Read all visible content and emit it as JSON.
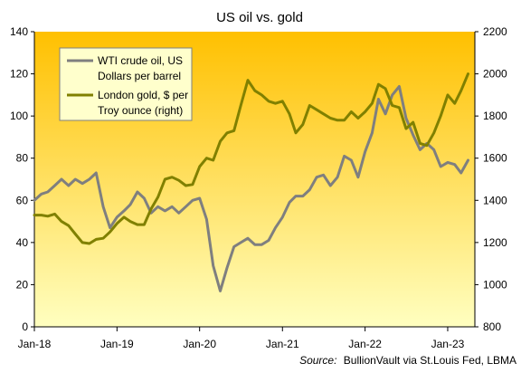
{
  "chart_data": {
    "type": "line",
    "title": "US oil vs. gold",
    "source_label": "Source:",
    "source_text": "BullionVault via St.Louis Fed, LBMA",
    "x_ticks": [
      "Jan-18",
      "Jan-19",
      "Jan-20",
      "Jan-21",
      "Jan-22",
      "Jan-23"
    ],
    "y_left": {
      "min": 0,
      "max": 140,
      "ticks": [
        0,
        20,
        40,
        60,
        80,
        100,
        120,
        140
      ]
    },
    "y_right": {
      "min": 800,
      "max": 2200,
      "ticks": [
        800,
        1000,
        1200,
        1400,
        1600,
        1800,
        2000,
        2200
      ]
    },
    "x_range": [
      "2018-01-01",
      "2023-05-01"
    ],
    "grid": false,
    "background": {
      "top": "#FFC000",
      "bottom": "#FFFFC0"
    },
    "legend": {
      "position": "top-left",
      "entries": [
        {
          "lines": [
            "WTI crude oil, US",
            "Dollars per barrel"
          ],
          "color": "#7F7F7F"
        },
        {
          "lines": [
            "London gold, $ per",
            "Troy ounce (right)"
          ],
          "color": "#808000"
        }
      ]
    },
    "series": [
      {
        "name": "WTI crude oil, US Dollars per barrel",
        "axis": "left",
        "color": "#7F7F7F",
        "points": [
          [
            "2018-01-01",
            60
          ],
          [
            "2018-02-01",
            63
          ],
          [
            "2018-03-01",
            64
          ],
          [
            "2018-04-01",
            67
          ],
          [
            "2018-05-01",
            70
          ],
          [
            "2018-06-01",
            67
          ],
          [
            "2018-07-01",
            70
          ],
          [
            "2018-08-01",
            68
          ],
          [
            "2018-09-01",
            70
          ],
          [
            "2018-10-01",
            73
          ],
          [
            "2018-11-01",
            57
          ],
          [
            "2018-12-01",
            47
          ],
          [
            "2019-01-01",
            52
          ],
          [
            "2019-02-01",
            55
          ],
          [
            "2019-03-01",
            58
          ],
          [
            "2019-04-01",
            64
          ],
          [
            "2019-05-01",
            61
          ],
          [
            "2019-06-01",
            54
          ],
          [
            "2019-07-01",
            57
          ],
          [
            "2019-08-01",
            55
          ],
          [
            "2019-09-01",
            57
          ],
          [
            "2019-10-01",
            54
          ],
          [
            "2019-11-01",
            57
          ],
          [
            "2019-12-01",
            60
          ],
          [
            "2020-01-01",
            61
          ],
          [
            "2020-02-01",
            51
          ],
          [
            "2020-03-01",
            29
          ],
          [
            "2020-04-01",
            17
          ],
          [
            "2020-05-01",
            28
          ],
          [
            "2020-06-01",
            38
          ],
          [
            "2020-07-01",
            40
          ],
          [
            "2020-08-01",
            42
          ],
          [
            "2020-09-01",
            39
          ],
          [
            "2020-10-01",
            39
          ],
          [
            "2020-11-01",
            41
          ],
          [
            "2020-12-01",
            47
          ],
          [
            "2021-01-01",
            52
          ],
          [
            "2021-02-01",
            59
          ],
          [
            "2021-03-01",
            62
          ],
          [
            "2021-04-01",
            62
          ],
          [
            "2021-05-01",
            65
          ],
          [
            "2021-06-01",
            71
          ],
          [
            "2021-07-01",
            72
          ],
          [
            "2021-08-01",
            67
          ],
          [
            "2021-09-01",
            71
          ],
          [
            "2021-10-01",
            81
          ],
          [
            "2021-11-01",
            79
          ],
          [
            "2021-12-01",
            71
          ],
          [
            "2022-01-01",
            83
          ],
          [
            "2022-02-01",
            92
          ],
          [
            "2022-03-01",
            108
          ],
          [
            "2022-04-01",
            101
          ],
          [
            "2022-05-01",
            110
          ],
          [
            "2022-06-01",
            114
          ],
          [
            "2022-07-01",
            99
          ],
          [
            "2022-08-01",
            91
          ],
          [
            "2022-09-01",
            84
          ],
          [
            "2022-10-01",
            87
          ],
          [
            "2022-11-01",
            84
          ],
          [
            "2022-12-01",
            76
          ],
          [
            "2023-01-01",
            78
          ],
          [
            "2023-02-01",
            77
          ],
          [
            "2023-03-01",
            73
          ],
          [
            "2023-04-01",
            79
          ]
        ]
      },
      {
        "name": "London gold, $ per Troy ounce (right)",
        "axis": "right",
        "color": "#808000",
        "points": [
          [
            "2018-01-01",
            1330
          ],
          [
            "2018-02-01",
            1330
          ],
          [
            "2018-03-01",
            1325
          ],
          [
            "2018-04-01",
            1335
          ],
          [
            "2018-05-01",
            1300
          ],
          [
            "2018-06-01",
            1280
          ],
          [
            "2018-07-01",
            1240
          ],
          [
            "2018-08-01",
            1200
          ],
          [
            "2018-09-01",
            1195
          ],
          [
            "2018-10-01",
            1215
          ],
          [
            "2018-11-01",
            1220
          ],
          [
            "2018-12-01",
            1250
          ],
          [
            "2019-01-01",
            1290
          ],
          [
            "2019-02-01",
            1320
          ],
          [
            "2019-03-01",
            1300
          ],
          [
            "2019-04-01",
            1285
          ],
          [
            "2019-05-01",
            1285
          ],
          [
            "2019-06-01",
            1360
          ],
          [
            "2019-07-01",
            1415
          ],
          [
            "2019-08-01",
            1500
          ],
          [
            "2019-09-01",
            1510
          ],
          [
            "2019-10-01",
            1495
          ],
          [
            "2019-11-01",
            1470
          ],
          [
            "2019-12-01",
            1475
          ],
          [
            "2020-01-01",
            1560
          ],
          [
            "2020-02-01",
            1600
          ],
          [
            "2020-03-01",
            1590
          ],
          [
            "2020-04-01",
            1680
          ],
          [
            "2020-05-01",
            1720
          ],
          [
            "2020-06-01",
            1730
          ],
          [
            "2020-07-01",
            1850
          ],
          [
            "2020-08-01",
            1970
          ],
          [
            "2020-09-01",
            1920
          ],
          [
            "2020-10-01",
            1900
          ],
          [
            "2020-11-01",
            1870
          ],
          [
            "2020-12-01",
            1860
          ],
          [
            "2021-01-01",
            1870
          ],
          [
            "2021-02-01",
            1810
          ],
          [
            "2021-03-01",
            1720
          ],
          [
            "2021-04-01",
            1760
          ],
          [
            "2021-05-01",
            1850
          ],
          [
            "2021-06-01",
            1830
          ],
          [
            "2021-07-01",
            1810
          ],
          [
            "2021-08-01",
            1790
          ],
          [
            "2021-09-01",
            1780
          ],
          [
            "2021-10-01",
            1780
          ],
          [
            "2021-11-01",
            1820
          ],
          [
            "2021-12-01",
            1790
          ],
          [
            "2022-01-01",
            1820
          ],
          [
            "2022-02-01",
            1860
          ],
          [
            "2022-03-01",
            1950
          ],
          [
            "2022-04-01",
            1930
          ],
          [
            "2022-05-01",
            1850
          ],
          [
            "2022-06-01",
            1840
          ],
          [
            "2022-07-01",
            1740
          ],
          [
            "2022-08-01",
            1770
          ],
          [
            "2022-09-01",
            1670
          ],
          [
            "2022-10-01",
            1660
          ],
          [
            "2022-11-01",
            1720
          ],
          [
            "2022-12-01",
            1800
          ],
          [
            "2023-01-01",
            1900
          ],
          [
            "2023-02-01",
            1860
          ],
          [
            "2023-03-01",
            1920
          ],
          [
            "2023-04-01",
            2000
          ]
        ]
      }
    ]
  }
}
